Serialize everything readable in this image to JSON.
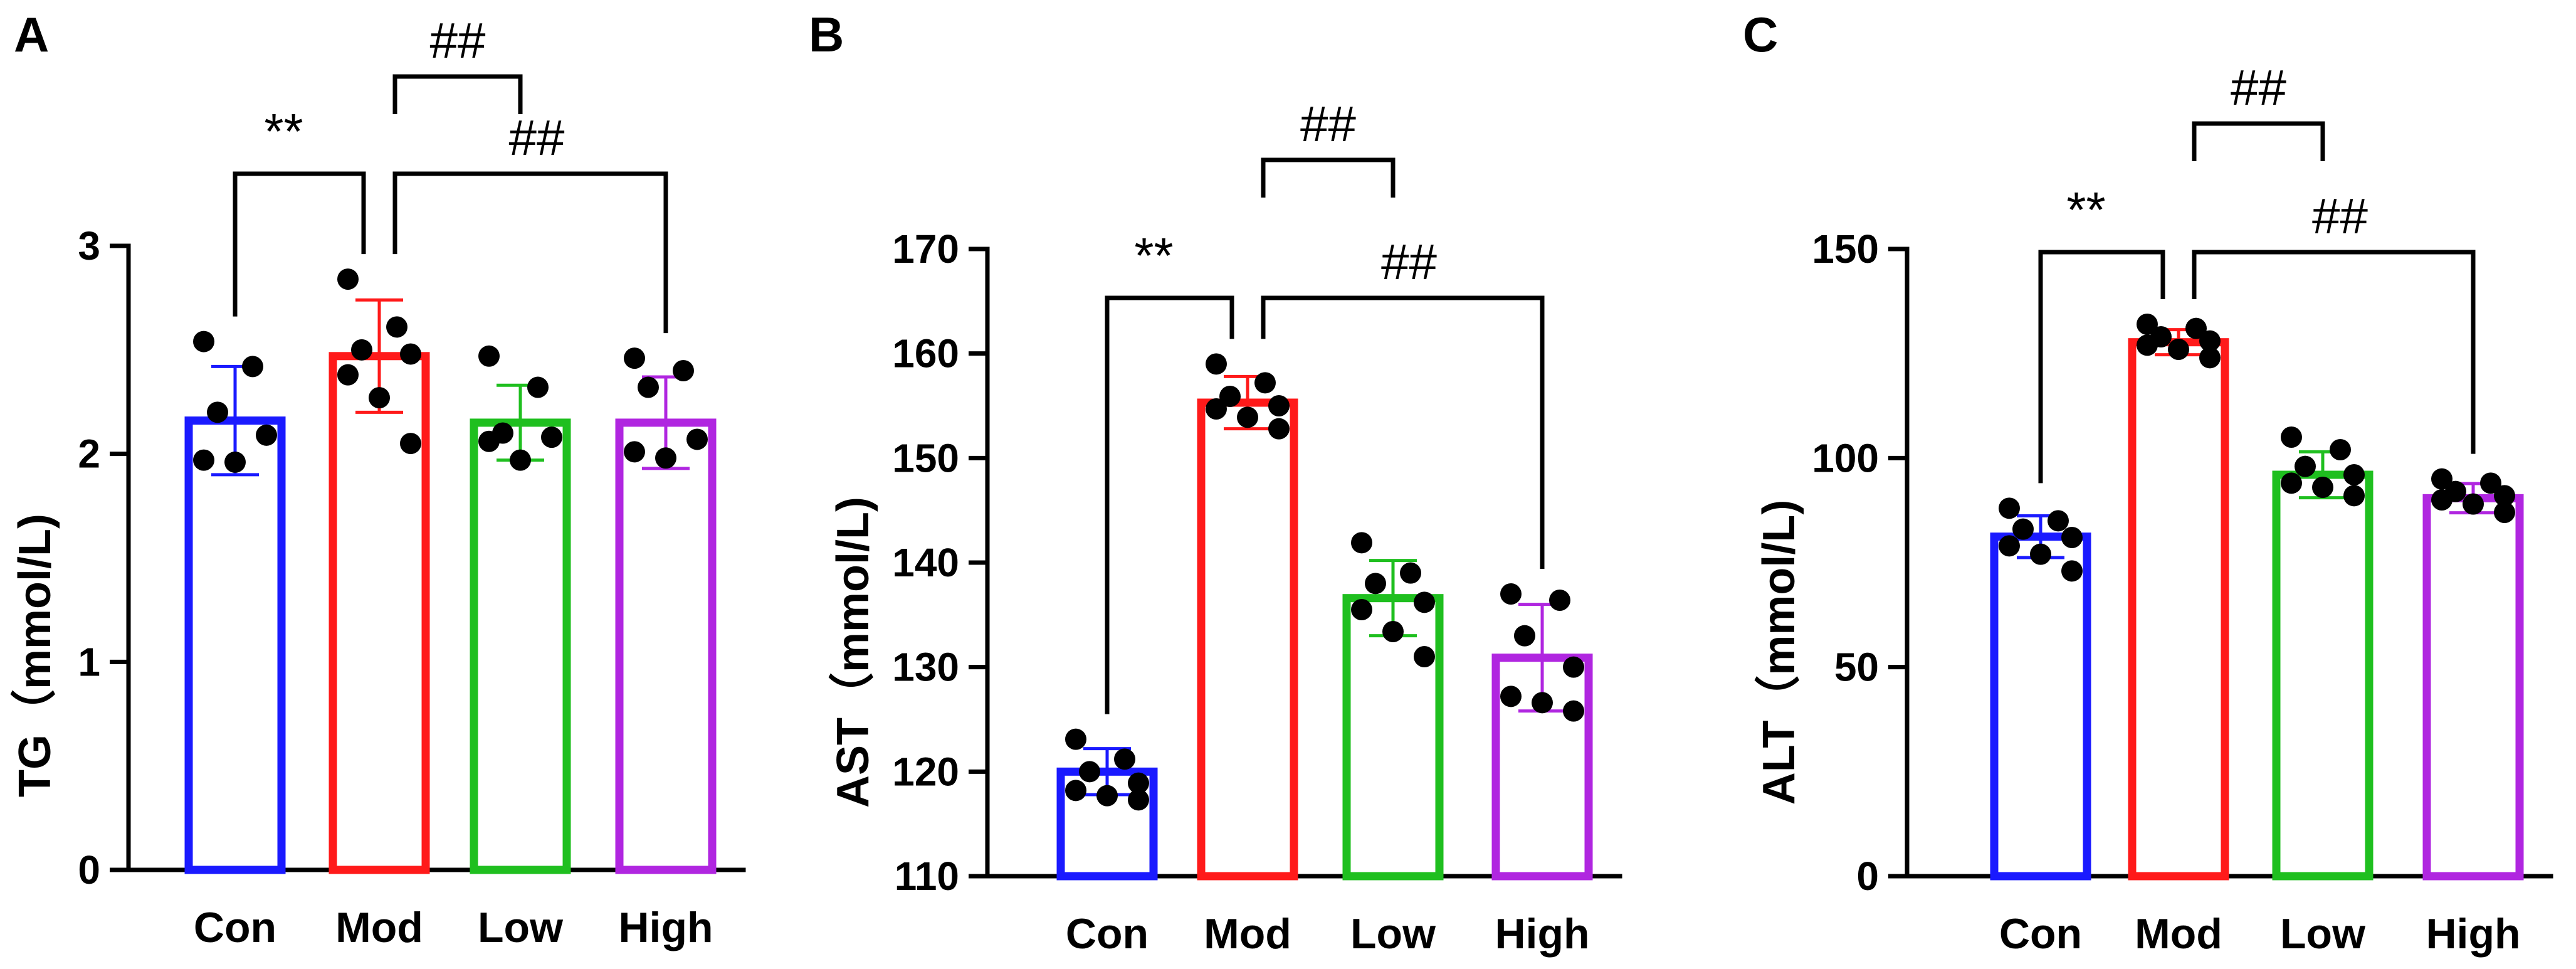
{
  "chart_data": [
    {
      "panel": "A",
      "type": "bar",
      "categories": [
        "Con",
        "Mod",
        "Low",
        "High"
      ],
      "values": [
        2.16,
        2.47,
        2.15,
        2.15
      ],
      "errors": [
        0.26,
        0.27,
        0.18,
        0.22
      ],
      "points": [
        [
          2.54,
          2.42,
          2.2,
          2.09,
          1.97,
          1.96
        ],
        [
          2.84,
          2.61,
          2.5,
          2.48,
          2.38,
          2.27,
          2.05
        ],
        [
          2.47,
          2.32,
          2.1,
          2.08,
          2.06,
          1.97
        ],
        [
          2.46,
          2.4,
          2.32,
          2.07,
          2.01,
          1.98
        ]
      ],
      "colors": [
        "#1a1aff",
        "#ff1a1a",
        "#1fbf1f",
        "#b026e0"
      ],
      "title": "",
      "xlabel": "",
      "ylabel": "TG（mmol/L)",
      "ylim": [
        0,
        3
      ],
      "yticks": [
        0,
        1,
        2,
        3
      ],
      "significance": [
        {
          "from": 0,
          "to": 1,
          "label": "**",
          "level": 1
        },
        {
          "from": 1,
          "to": 2,
          "label": "##",
          "level": 2
        },
        {
          "from": 1,
          "to": 3,
          "label": "##",
          "level": 1
        }
      ]
    },
    {
      "panel": "B",
      "type": "bar",
      "categories": [
        "Con",
        "Mod",
        "Low",
        "High"
      ],
      "values": [
        120.0,
        155.3,
        136.6,
        130.9
      ],
      "errors": [
        2.2,
        2.5,
        3.6,
        5.1
      ],
      "points": [
        [
          123.1,
          121.2,
          120.0,
          118.9,
          118.2,
          117.7,
          117.3
        ],
        [
          159.0,
          157.2,
          155.9,
          155.0,
          154.7,
          153.9,
          152.8
        ],
        [
          141.9,
          139.0,
          138.0,
          136.2,
          135.5,
          133.4,
          131.0
        ],
        [
          137.0,
          136.4,
          133.0,
          130.0,
          127.2,
          126.6,
          125.8
        ]
      ],
      "colors": [
        "#1a1aff",
        "#ff1a1a",
        "#1fbf1f",
        "#b026e0"
      ],
      "title": "",
      "xlabel": "",
      "ylabel": "AST（mmol/L)",
      "ylim": [
        110,
        170
      ],
      "yticks": [
        110,
        120,
        130,
        140,
        150,
        160,
        170
      ],
      "significance": [
        {
          "from": 0,
          "to": 1,
          "label": "**",
          "level": 1
        },
        {
          "from": 1,
          "to": 2,
          "label": "##",
          "level": 2
        },
        {
          "from": 1,
          "to": 3,
          "label": "##",
          "level": 1
        }
      ]
    },
    {
      "panel": "C",
      "type": "bar",
      "categories": [
        "Con",
        "Mod",
        "Low",
        "High"
      ],
      "values": [
        81.2,
        127.7,
        96.0,
        90.4
      ],
      "errors": [
        5.0,
        3.0,
        5.5,
        3.5
      ],
      "points": [
        [
          88.0,
          85.0,
          83.0,
          81.0,
          79.0,
          77.0,
          73.0
        ],
        [
          132.0,
          131.0,
          129.0,
          128.0,
          127.0,
          126.0,
          124.0
        ],
        [
          105.0,
          102.0,
          98.0,
          96.0,
          94.0,
          93.0,
          91.0
        ],
        [
          95.0,
          94.0,
          92.0,
          91.0,
          90.0,
          89.0,
          87.0
        ]
      ],
      "colors": [
        "#1a1aff",
        "#ff1a1a",
        "#1fbf1f",
        "#b026e0"
      ],
      "title": "",
      "xlabel": "",
      "ylabel": "ALT（mmol/L)",
      "ylim": [
        0,
        150
      ],
      "yticks": [
        0,
        50,
        100,
        150
      ],
      "significance": [
        {
          "from": 0,
          "to": 1,
          "label": "**",
          "level": 1
        },
        {
          "from": 1,
          "to": 2,
          "label": "##",
          "level": 2
        },
        {
          "from": 1,
          "to": 3,
          "label": "##",
          "level": 1
        }
      ]
    }
  ]
}
